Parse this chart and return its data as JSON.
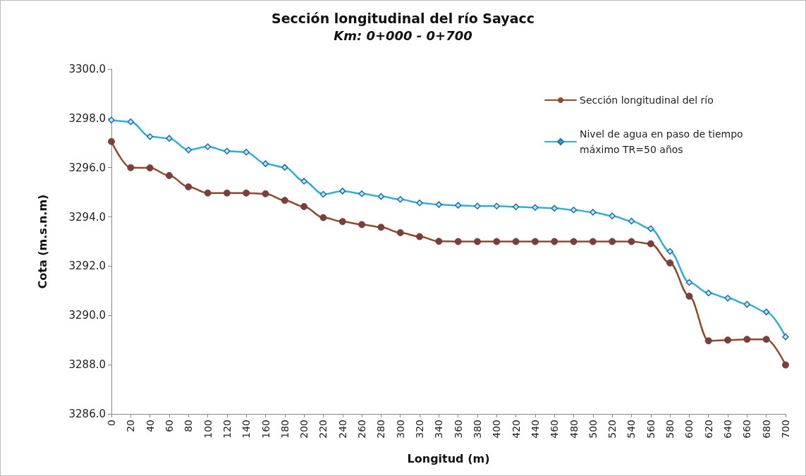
{
  "chart_data": {
    "type": "line",
    "title": "Sección longitudinal del río Sayacc",
    "subtitle": "Km: 0+000 - 0+700",
    "xlabel": "Longitud (m)",
    "ylabel": "Cota (m.s.n.m)",
    "categories": [
      "0",
      "20",
      "40",
      "60",
      "80",
      "100",
      "120",
      "140",
      "160",
      "180",
      "200",
      "220",
      "240",
      "260",
      "280",
      "300",
      "320",
      "340",
      "360",
      "380",
      "400",
      "420",
      "440",
      "460",
      "480",
      "500",
      "520",
      "540",
      "560",
      "580",
      "600",
      "620",
      "640",
      "660",
      "680",
      "700"
    ],
    "ylim": [
      3286,
      3300
    ],
    "yticks": [
      {
        "value": 3286,
        "label": "3286.0"
      },
      {
        "value": 3288,
        "label": "3288.0"
      },
      {
        "value": 3290,
        "label": "3290.0"
      },
      {
        "value": 3292,
        "label": "3292.0"
      },
      {
        "value": 3294,
        "label": "3294.0"
      },
      {
        "value": 3296,
        "label": "3296.0"
      },
      {
        "value": 3298,
        "label": "3298.0"
      },
      {
        "value": 3300,
        "label": "3300.0"
      }
    ],
    "grid": false,
    "legend": "top right",
    "series": [
      {
        "name": "Sección longitudinal del río",
        "color": "#8e4b2c",
        "marker": "circle",
        "values": [
          3297.06,
          3296.0,
          3295.99,
          3295.68,
          3295.22,
          3294.97,
          3294.97,
          3294.97,
          3294.94,
          3294.67,
          3294.42,
          3293.97,
          3293.81,
          3293.69,
          3293.58,
          3293.36,
          3293.2,
          3293.01,
          3293.0,
          3293.0,
          3293.0,
          3293.0,
          3293.0,
          3293.0,
          3293.0,
          3293.0,
          3293.0,
          3293.0,
          3292.91,
          3292.13,
          3290.78,
          3288.97,
          3289.0,
          3289.03,
          3289.03,
          3287.99
        ]
      },
      {
        "name": "Nivel de agua en paso de tiempo máximo TR=50 años",
        "color": "#31b0d5",
        "marker": "diamond",
        "values": [
          3297.93,
          3297.86,
          3297.26,
          3297.19,
          3296.72,
          3296.85,
          3296.67,
          3296.63,
          3296.16,
          3296.01,
          3295.45,
          3294.92,
          3295.05,
          3294.94,
          3294.83,
          3294.71,
          3294.57,
          3294.5,
          3294.47,
          3294.44,
          3294.44,
          3294.41,
          3294.38,
          3294.35,
          3294.28,
          3294.19,
          3294.04,
          3293.83,
          3293.52,
          3292.6,
          3291.34,
          3290.91,
          3290.7,
          3290.45,
          3290.14,
          3289.13
        ]
      }
    ]
  }
}
